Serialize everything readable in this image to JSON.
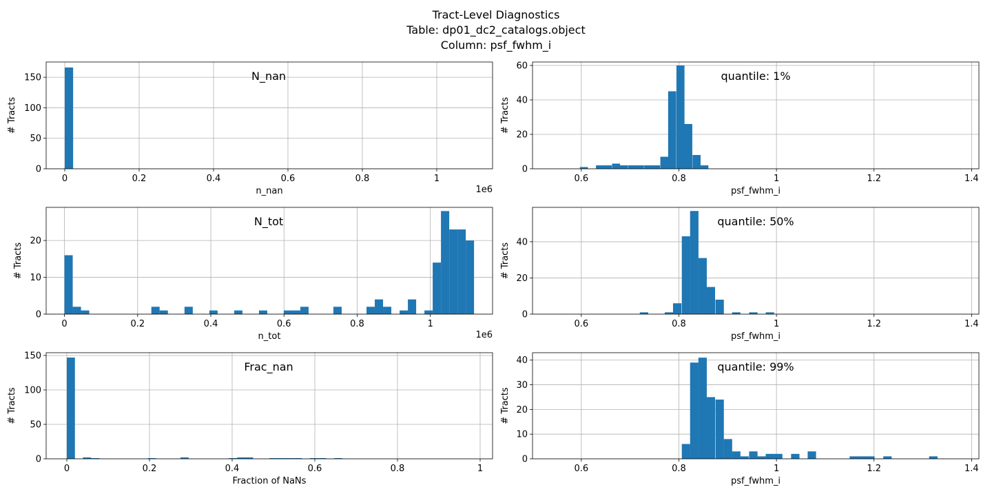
{
  "figure": {
    "title_lines": [
      "Tract-Level Diagnostics",
      "Table:  dp01_dc2_catalogs.object",
      "Column:  psf_fwhm_i"
    ],
    "bar_color": "#1f77b4"
  },
  "chart_data": [
    {
      "type": "bar",
      "title": "N_nan",
      "xlabel": "n_nan",
      "ylabel": "# Tracts",
      "xlim": [
        -50000,
        1150000
      ],
      "ylim": [
        0,
        175
      ],
      "xticks": [
        0,
        0.2,
        0.4,
        0.6,
        0.8,
        1.0
      ],
      "xtick_scale": 1000000,
      "offset_text": "1e6",
      "yticks": [
        0,
        50,
        100,
        150
      ],
      "grid": true,
      "bin_width": 22500,
      "bins": [
        [
          0,
          166
        ]
      ]
    },
    {
      "type": "bar",
      "title": "quantile: 1%",
      "xlabel": "psf_fwhm_i",
      "ylabel": "# Tracts",
      "xlim": [
        0.5,
        1.415
      ],
      "ylim": [
        0,
        62
      ],
      "xticks": [
        0.6,
        0.8,
        1.0,
        1.2,
        1.4
      ],
      "yticks": [
        0,
        20,
        40,
        60
      ],
      "grid": true,
      "bin_width": 0.0165,
      "bins": [
        [
          0.597,
          1
        ],
        [
          0.63,
          2
        ],
        [
          0.646,
          2
        ],
        [
          0.663,
          3
        ],
        [
          0.679,
          2
        ],
        [
          0.696,
          2
        ],
        [
          0.712,
          2
        ],
        [
          0.729,
          2
        ],
        [
          0.745,
          2
        ],
        [
          0.762,
          7
        ],
        [
          0.778,
          45
        ],
        [
          0.795,
          60
        ],
        [
          0.811,
          26
        ],
        [
          0.828,
          8
        ],
        [
          0.844,
          2
        ]
      ]
    },
    {
      "type": "bar",
      "title": "N_tot",
      "xlabel": "n_tot",
      "ylabel": "# Tracts",
      "xlim": [
        -50000,
        1170000
      ],
      "ylim": [
        0,
        29
      ],
      "xticks": [
        0,
        0.2,
        0.4,
        0.6,
        0.8,
        1.0
      ],
      "xtick_scale": 1000000,
      "offset_text": "1e6",
      "yticks": [
        0,
        10,
        20
      ],
      "grid": true,
      "bin_width": 22600,
      "bins": [
        [
          0,
          16
        ],
        [
          22600,
          2
        ],
        [
          45200,
          1
        ],
        [
          237500,
          2
        ],
        [
          260100,
          1
        ],
        [
          328100,
          2
        ],
        [
          396000,
          1
        ],
        [
          463800,
          1
        ],
        [
          531600,
          1
        ],
        [
          599400,
          1
        ],
        [
          622000,
          1
        ],
        [
          644600,
          2
        ],
        [
          735000,
          2
        ],
        [
          825500,
          2
        ],
        [
          848100,
          4
        ],
        [
          870700,
          2
        ],
        [
          916000,
          1
        ],
        [
          938600,
          4
        ],
        [
          983800,
          1
        ],
        [
          1006400,
          14
        ],
        [
          1029000,
          28
        ],
        [
          1051600,
          23
        ],
        [
          1074200,
          23
        ],
        [
          1096800,
          20
        ]
      ]
    },
    {
      "type": "bar",
      "title": "quantile: 50%",
      "xlabel": "psf_fwhm_i",
      "ylabel": "# Tracts",
      "xlim": [
        0.5,
        1.415
      ],
      "ylim": [
        0,
        59
      ],
      "xticks": [
        0.6,
        0.8,
        1.0,
        1.2,
        1.4
      ],
      "yticks": [
        0,
        20,
        40
      ],
      "grid": true,
      "bin_width": 0.0172,
      "bins": [
        [
          0.72,
          1
        ],
        [
          0.771,
          1
        ],
        [
          0.788,
          6
        ],
        [
          0.806,
          43
        ],
        [
          0.823,
          57
        ],
        [
          0.84,
          31
        ],
        [
          0.857,
          15
        ],
        [
          0.875,
          8
        ],
        [
          0.909,
          1
        ],
        [
          0.944,
          1
        ],
        [
          0.978,
          1
        ]
      ]
    },
    {
      "type": "bar",
      "title": "Frac_nan",
      "xlabel": "Fraction of NaNs",
      "ylabel": "# Tracts",
      "xlim": [
        -0.05,
        1.03
      ],
      "ylim": [
        0,
        154
      ],
      "xticks": [
        0.0,
        0.2,
        0.4,
        0.6,
        0.8,
        1.0
      ],
      "yticks": [
        0,
        50,
        100,
        150
      ],
      "grid": true,
      "bin_width": 0.0196,
      "bins": [
        [
          0,
          147
        ],
        [
          0.039,
          2
        ],
        [
          0.059,
          1
        ],
        [
          0.196,
          1
        ],
        [
          0.275,
          2
        ],
        [
          0.392,
          1
        ],
        [
          0.412,
          2
        ],
        [
          0.431,
          2
        ],
        [
          0.49,
          1
        ],
        [
          0.51,
          1
        ],
        [
          0.529,
          1
        ],
        [
          0.549,
          1
        ],
        [
          0.588,
          1
        ],
        [
          0.608,
          1
        ],
        [
          0.647,
          1
        ]
      ]
    },
    {
      "type": "bar",
      "title": "quantile: 99%",
      "xlabel": "psf_fwhm_i",
      "ylabel": "# Tracts",
      "xlim": [
        0.5,
        1.415
      ],
      "ylim": [
        0,
        43
      ],
      "xticks": [
        0.6,
        0.8,
        1.0,
        1.2,
        1.4
      ],
      "yticks": [
        0,
        10,
        20,
        30,
        40
      ],
      "grid": true,
      "bin_width": 0.0172,
      "bins": [
        [
          0.806,
          6
        ],
        [
          0.823,
          39
        ],
        [
          0.84,
          41
        ],
        [
          0.857,
          25
        ],
        [
          0.875,
          24
        ],
        [
          0.892,
          8
        ],
        [
          0.909,
          3
        ],
        [
          0.926,
          1
        ],
        [
          0.944,
          3
        ],
        [
          0.961,
          1
        ],
        [
          0.978,
          2
        ],
        [
          0.995,
          2
        ],
        [
          1.03,
          2
        ],
        [
          1.064,
          3
        ],
        [
          1.15,
          1
        ],
        [
          1.167,
          1
        ],
        [
          1.184,
          1
        ],
        [
          1.219,
          1
        ],
        [
          1.313,
          1
        ]
      ]
    }
  ]
}
